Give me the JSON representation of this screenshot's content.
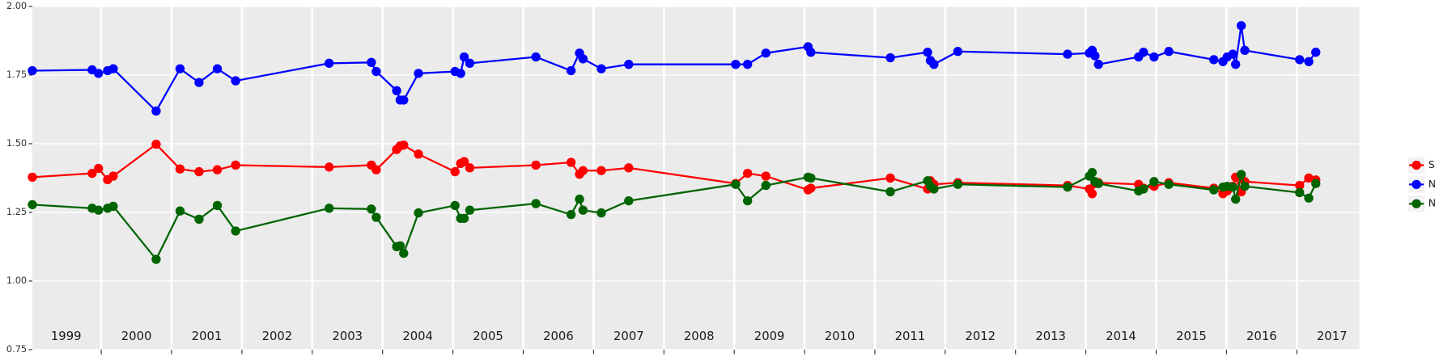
{
  "chart_data": {
    "type": "line",
    "x": [
      1999.02,
      1999.87,
      1999.96,
      2000.09,
      2000.17,
      2000.78,
      2001.12,
      2001.39,
      2001.65,
      2001.91,
      2003.24,
      2003.84,
      2003.91,
      2004.2,
      2004.25,
      2004.3,
      2004.51,
      2005.03,
      2005.11,
      2005.16,
      2005.24,
      2006.18,
      2006.68,
      2006.8,
      2006.85,
      2007.11,
      2007.5,
      2009.02,
      2009.19,
      2009.45,
      2010.05,
      2010.09,
      2011.22,
      2011.75,
      2011.79,
      2011.84,
      2012.18,
      2013.74,
      2014.05,
      2014.09,
      2014.13,
      2014.18,
      2014.75,
      2014.82,
      2014.97,
      2015.18,
      2015.82,
      2015.95,
      2016.01,
      2016.09,
      2016.13,
      2016.21,
      2016.26,
      2017.04,
      2017.17,
      2017.27
    ],
    "series": [
      {
        "name": "SWIR",
        "color": "#ff0000",
        "values": [
          1.378,
          1.392,
          1.41,
          1.369,
          1.382,
          1.498,
          1.408,
          1.398,
          1.405,
          1.422,
          1.415,
          1.422,
          1.405,
          1.479,
          1.492,
          1.495,
          1.462,
          1.398,
          1.428,
          1.435,
          1.412,
          1.422,
          1.432,
          1.389,
          1.402,
          1.402,
          1.412,
          1.355,
          1.392,
          1.382,
          1.332,
          1.338,
          1.375,
          1.335,
          1.365,
          1.352,
          1.358,
          1.348,
          1.335,
          1.318,
          1.355,
          1.358,
          1.352,
          1.338,
          1.345,
          1.358,
          1.338,
          1.318,
          1.328,
          1.345,
          1.378,
          1.325,
          1.362,
          1.348,
          1.375,
          1.368
        ]
      },
      {
        "name": "NDVI",
        "color": "#0000ff",
        "values": [
          1.766,
          1.769,
          1.756,
          1.766,
          1.773,
          1.619,
          1.773,
          1.723,
          1.773,
          1.729,
          1.793,
          1.796,
          1.763,
          1.693,
          1.659,
          1.659,
          1.756,
          1.763,
          1.756,
          1.816,
          1.793,
          1.816,
          1.766,
          1.83,
          1.809,
          1.773,
          1.789,
          1.789,
          1.789,
          1.83,
          1.853,
          1.833,
          1.813,
          1.833,
          1.803,
          1.789,
          1.836,
          1.826,
          1.83,
          1.84,
          1.82,
          1.789,
          1.816,
          1.833,
          1.816,
          1.836,
          1.806,
          1.799,
          1.816,
          1.826,
          1.789,
          1.93,
          1.84,
          1.806,
          1.799,
          1.833
        ]
      },
      {
        "name": "NDWI",
        "color": "#006400",
        "values": [
          1.278,
          1.265,
          1.258,
          1.265,
          1.272,
          1.079,
          1.255,
          1.225,
          1.275,
          1.182,
          1.265,
          1.262,
          1.232,
          1.125,
          1.128,
          1.101,
          1.248,
          1.275,
          1.228,
          1.228,
          1.258,
          1.282,
          1.242,
          1.298,
          1.258,
          1.248,
          1.292,
          1.352,
          1.292,
          1.348,
          1.378,
          1.375,
          1.325,
          1.365,
          1.345,
          1.335,
          1.352,
          1.342,
          1.382,
          1.395,
          1.362,
          1.355,
          1.328,
          1.335,
          1.362,
          1.352,
          1.332,
          1.342,
          1.345,
          1.342,
          1.298,
          1.388,
          1.345,
          1.322,
          1.302,
          1.355
        ]
      }
    ],
    "xlim": [
      1999.02,
      2017.89
    ],
    "ylim": [
      0.75,
      2.0
    ],
    "yticks": [
      {
        "value": 0.75,
        "label": "0.75"
      },
      {
        "value": 1.0,
        "label": "1.00"
      },
      {
        "value": 1.25,
        "label": "1.25"
      },
      {
        "value": 1.5,
        "label": "1.50"
      },
      {
        "value": 1.75,
        "label": "1.75"
      },
      {
        "value": 2.0,
        "label": "2.00"
      }
    ],
    "year_boundaries": [
      2000,
      2001,
      2002,
      2003,
      2004,
      2005,
      2006,
      2007,
      2008,
      2009,
      2010,
      2011,
      2012,
      2013,
      2014,
      2015,
      2016,
      2017
    ],
    "year_labels": [
      {
        "value": 1999.5,
        "label": "1999"
      },
      {
        "value": 2000.5,
        "label": "2000"
      },
      {
        "value": 2001.5,
        "label": "2001"
      },
      {
        "value": 2002.5,
        "label": "2002"
      },
      {
        "value": 2003.5,
        "label": "2003"
      },
      {
        "value": 2004.5,
        "label": "2004"
      },
      {
        "value": 2005.5,
        "label": "2005"
      },
      {
        "value": 2006.5,
        "label": "2006"
      },
      {
        "value": 2007.5,
        "label": "2007"
      },
      {
        "value": 2008.5,
        "label": "2008"
      },
      {
        "value": 2009.5,
        "label": "2009"
      },
      {
        "value": 2010.5,
        "label": "2010"
      },
      {
        "value": 2011.5,
        "label": "2011"
      },
      {
        "value": 2012.5,
        "label": "2012"
      },
      {
        "value": 2013.5,
        "label": "2013"
      },
      {
        "value": 2014.5,
        "label": "2014"
      },
      {
        "value": 2015.5,
        "label": "2015"
      },
      {
        "value": 2016.5,
        "label": "2016"
      },
      {
        "value": 2017.5,
        "label": "2017"
      }
    ],
    "grid": true,
    "legend": "right"
  }
}
